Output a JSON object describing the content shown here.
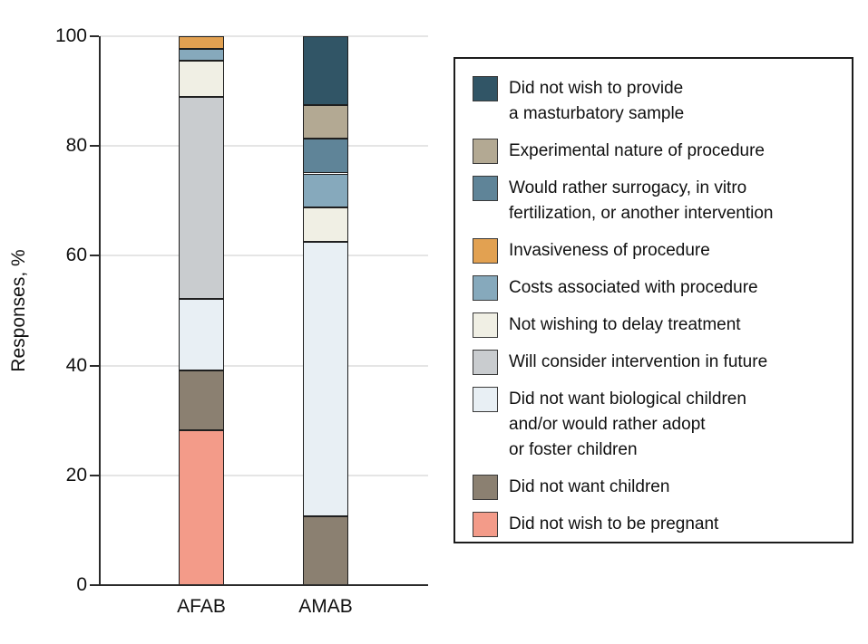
{
  "chart_data": {
    "type": "bar",
    "stacked": true,
    "ylabel": "Responses, %",
    "ylim": [
      0,
      100
    ],
    "yticks": [
      0,
      20,
      40,
      60,
      80,
      100
    ],
    "grid": "horizontal",
    "legend_position": "right",
    "categories": [
      "AFAB",
      "AMAB"
    ],
    "series": [
      {
        "name": "Did not wish to provide a masturbatory sample",
        "legend_lines": "Did not wish to provide\na masturbatory sample",
        "color": "#315566",
        "values": [
          0,
          12.5
        ]
      },
      {
        "name": "Experimental nature of procedure",
        "legend_lines": "Experimental nature of procedure",
        "color": "#b3a993",
        "values": [
          0,
          6.2
        ]
      },
      {
        "name": "Would rather surrogacy, in vitro fertilization, or another intervention",
        "legend_lines": "Would rather surrogacy, in vitro\nfertilization, or another intervention",
        "color": "#5f8498",
        "values": [
          0,
          6.3
        ]
      },
      {
        "name": "Invasiveness of procedure",
        "legend_lines": "Invasiveness of procedure",
        "color": "#e2a151",
        "values": [
          2.3,
          0
        ]
      },
      {
        "name": "Costs associated with procedure",
        "legend_lines": "Costs associated with procedure",
        "color": "#86a9bc",
        "values": [
          2.2,
          6.2
        ]
      },
      {
        "name": "Not wishing to delay treatment",
        "legend_lines": "Not wishing to delay treatment",
        "color": "#f0efe4",
        "values": [
          6.5,
          6.3
        ]
      },
      {
        "name": "Will consider intervention in future",
        "legend_lines": "Will consider intervention in future",
        "color": "#c9cccf",
        "values": [
          36.9,
          0
        ]
      },
      {
        "name": "Did not want biological children and/or would rather adopt or foster children",
        "legend_lines": "Did not want biological children\nand/or would rather adopt\nor foster children",
        "color": "#e8eff4",
        "values": [
          13.0,
          50.0
        ]
      },
      {
        "name": "Did not want children",
        "legend_lines": "Did not want children",
        "color": "#8b8071",
        "values": [
          10.9,
          12.5
        ]
      },
      {
        "name": "Did not wish to be pregnant",
        "legend_lines": "Did not wish to be pregnant",
        "color": "#f39b89",
        "values": [
          28.2,
          0
        ]
      }
    ]
  }
}
